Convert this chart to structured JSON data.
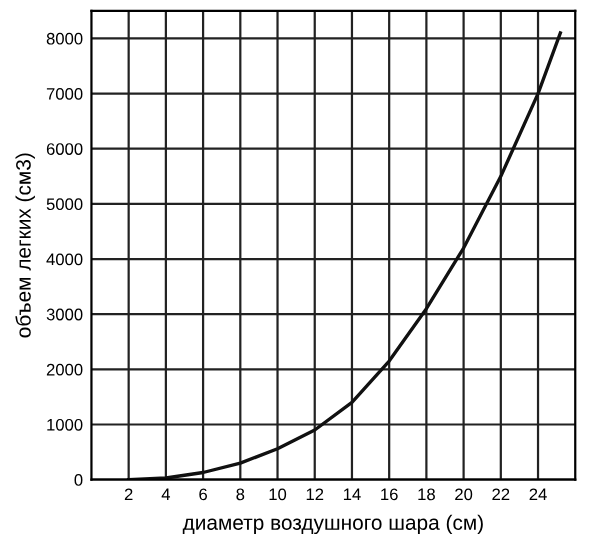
{
  "chart_data": {
    "type": "line",
    "xlabel": "диаметр воздушного шара (см)",
    "ylabel": "объем легких (см3)",
    "series": [
      {
        "color": "#111111",
        "x": [
          2,
          4,
          6,
          8,
          10,
          12,
          14,
          16,
          18,
          20,
          22,
          24,
          25.2
        ],
        "values": [
          0,
          30,
          130,
          300,
          560,
          900,
          1400,
          2150,
          3100,
          4200,
          5500,
          7000,
          8100
        ]
      }
    ],
    "xlim": [
      0,
      26
    ],
    "xticks": [
      2,
      4,
      6,
      8,
      10,
      12,
      14,
      16,
      18,
      20,
      22,
      24
    ],
    "ylim": [
      0,
      8500
    ],
    "yticks": [
      0,
      1000,
      2000,
      3000,
      4000,
      5000,
      6000,
      7000,
      8000
    ],
    "grid": true,
    "marker": "none",
    "line_style": "solid"
  }
}
